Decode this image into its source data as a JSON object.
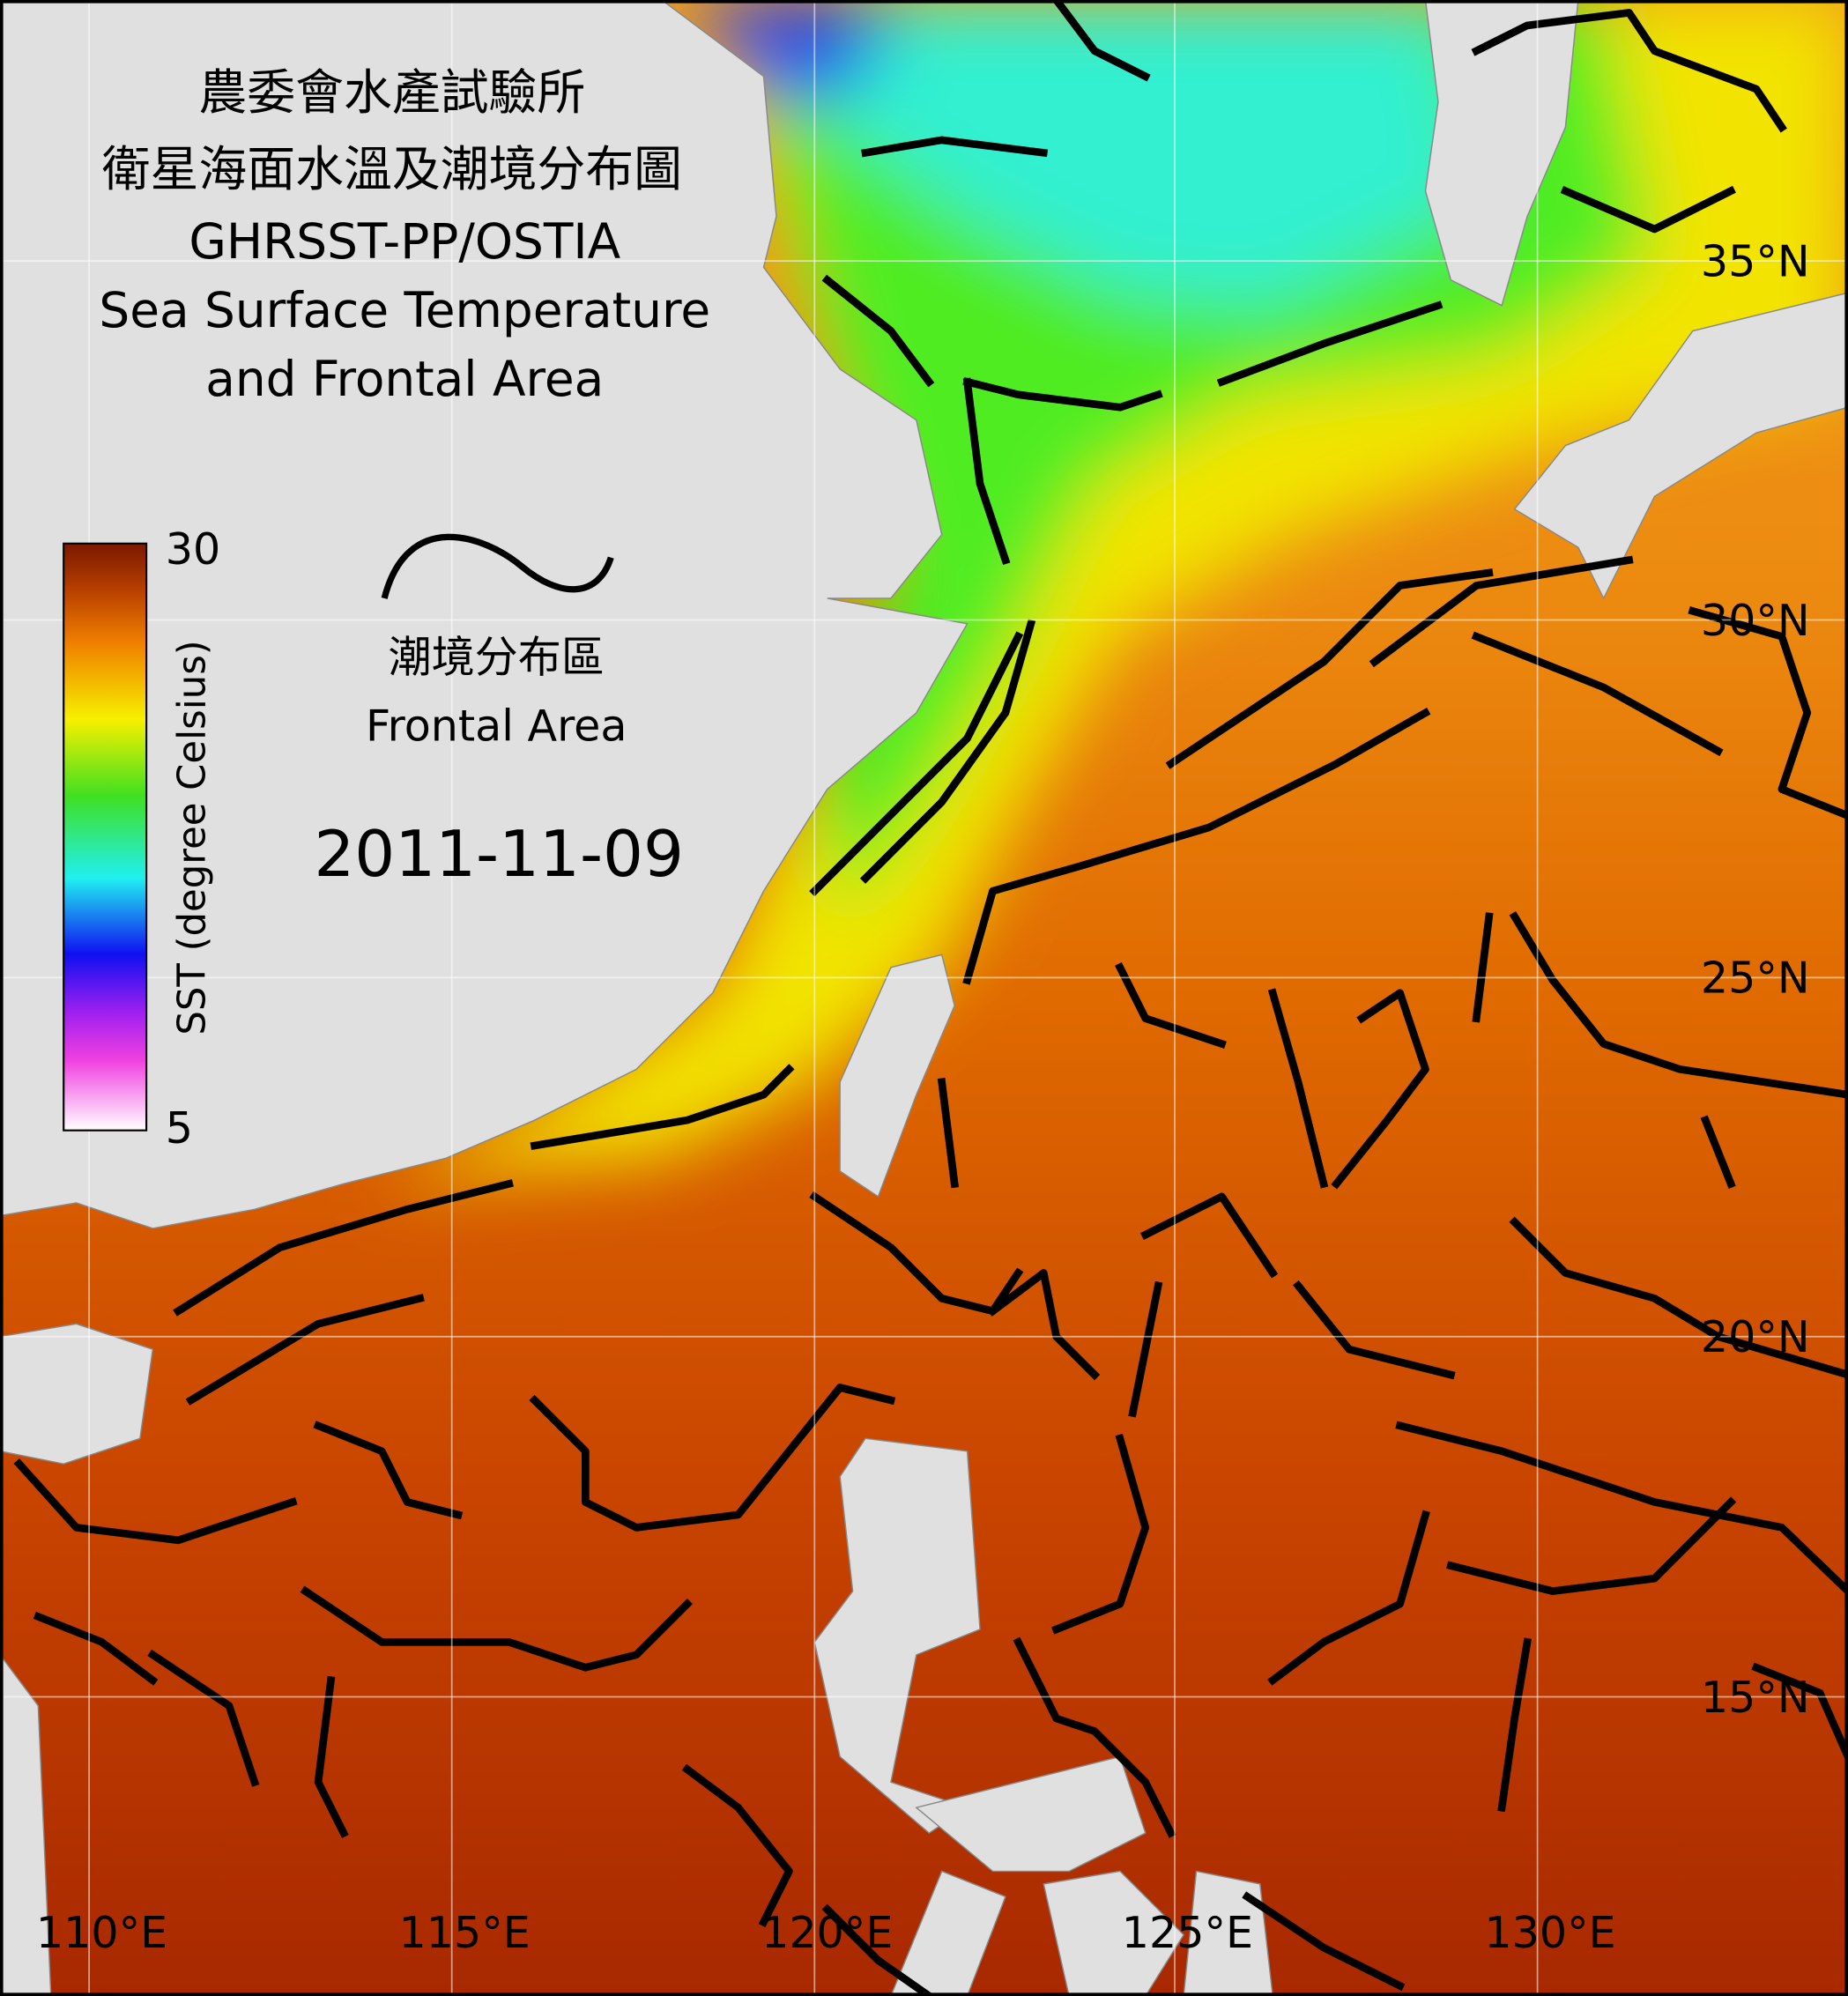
{
  "header": {
    "title_lines": [
      "農委會水產試驗所",
      "衛星海面水溫及潮境分布圖",
      "GHRSST-PP/OSTIA",
      "Sea Surface Temperature",
      "and Frontal Area"
    ]
  },
  "colorbar": {
    "label": "SST (degree Celsius)",
    "max": 30,
    "min": 5
  },
  "legend": {
    "label_zh": "潮境分布區",
    "label_en": "Frontal Area"
  },
  "date": "2011-11-09",
  "map": {
    "lat_labels": [
      "35°N",
      "30°N",
      "25°N",
      "20°N",
      "15°N"
    ],
    "lon_labels": [
      "110°E",
      "115°E",
      "120°E",
      "125°E",
      "130°E"
    ]
  }
}
